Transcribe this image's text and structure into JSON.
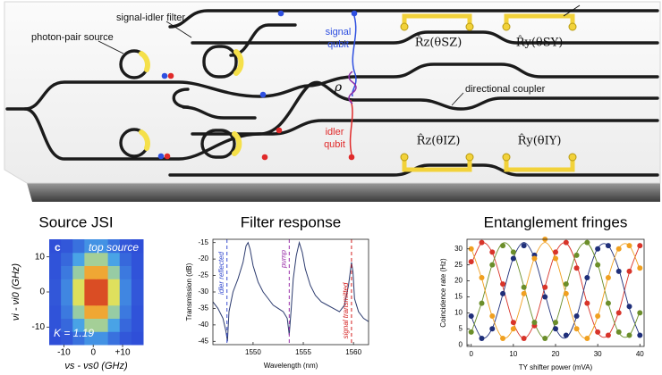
{
  "diagram": {
    "labels": {
      "filter": "signal-idler filter",
      "source": "photon-pair source",
      "signal": [
        "signal",
        "qubit"
      ],
      "rho": "ρ",
      "idler": [
        "idler",
        "qubit"
      ],
      "coupler": "directional coupler",
      "rsz": "R̂z(θSZ)",
      "rsy": "R̂y(θSY)",
      "riz": "R̂z(θIZ)",
      "riy": "R̂y(θIY)"
    }
  },
  "chart_data": [
    {
      "type": "heatmap",
      "title": "Source JSI",
      "xlabel": "νs - νs0 (GHz)",
      "ylabel": "νi - νi0 (GHz)",
      "annotations": [
        "c",
        "top source",
        "K = 1.19"
      ],
      "xlim": [
        -15,
        17
      ],
      "ylim": [
        -15,
        15
      ],
      "xticks": [
        -10,
        0,
        {
          "value": 10,
          "label": "+10"
        }
      ],
      "yticks": [
        -10,
        0,
        10
      ],
      "colormap": [
        "#2f4fd8",
        "#4fb8ea",
        "#f2e54a",
        "#ee8a2a",
        "#c8141e"
      ],
      "z": [
        [
          0.0,
          0.02,
          0.08,
          0.16,
          0.16,
          0.08,
          0.02,
          0.0
        ],
        [
          0.01,
          0.06,
          0.2,
          0.38,
          0.38,
          0.2,
          0.06,
          0.01
        ],
        [
          0.01,
          0.1,
          0.36,
          0.67,
          0.67,
          0.36,
          0.1,
          0.01
        ],
        [
          0.02,
          0.13,
          0.47,
          0.88,
          0.88,
          0.47,
          0.13,
          0.02
        ],
        [
          0.02,
          0.13,
          0.47,
          0.88,
          0.88,
          0.47,
          0.13,
          0.02
        ],
        [
          0.01,
          0.1,
          0.36,
          0.67,
          0.67,
          0.36,
          0.1,
          0.01
        ],
        [
          0.01,
          0.06,
          0.2,
          0.38,
          0.38,
          0.2,
          0.06,
          0.01
        ],
        [
          0.0,
          0.02,
          0.08,
          0.16,
          0.16,
          0.08,
          0.02,
          0.0
        ]
      ]
    },
    {
      "type": "line",
      "title": "Filter response",
      "xlabel": "Wavelength (nm)",
      "ylabel": "Transmission (dB)",
      "xlim": [
        1546,
        1561.5
      ],
      "ylim": [
        -46,
        -14
      ],
      "xticks": [
        1550,
        1555,
        1560
      ],
      "yticks": [
        -15,
        -20,
        -25,
        -30,
        -35,
        -40,
        -45
      ],
      "color": "#2b3a6e",
      "x": [
        1546.0,
        1546.5,
        1547.0,
        1547.3,
        1547.45,
        1547.6,
        1548.0,
        1548.5,
        1549.0,
        1549.3,
        1549.5,
        1549.7,
        1550.0,
        1550.5,
        1551.0,
        1551.5,
        1552.0,
        1552.5,
        1553.0,
        1553.4,
        1553.6,
        1553.8,
        1554.0,
        1554.3,
        1554.6,
        1554.9,
        1555.2,
        1555.7,
        1556.2,
        1556.8,
        1557.4,
        1558.0,
        1558.6,
        1559.1,
        1559.5,
        1559.8,
        1559.95,
        1560.1,
        1560.5,
        1561.0,
        1561.5
      ],
      "values": [
        -33,
        -35,
        -38,
        -42,
        -45,
        -36,
        -30,
        -26,
        -21,
        -16,
        -15,
        -17,
        -22,
        -27,
        -30,
        -32,
        -34,
        -35,
        -36,
        -38,
        -43,
        -35,
        -26,
        -19,
        -15,
        -18,
        -23,
        -28,
        -31,
        -33,
        -34,
        -35,
        -36,
        -34,
        -28,
        -21,
        -24,
        -32,
        -36,
        -38,
        -39
      ],
      "annotations": [
        {
          "text": "idler reflected",
          "x": 1547.4,
          "color": "#3a4fd0"
        },
        {
          "text": "pump",
          "x": 1553.6,
          "color": "#9a2fa8"
        },
        {
          "text": "signal transmitted",
          "x": 1559.8,
          "color": "#d42020"
        }
      ]
    },
    {
      "type": "scatter",
      "title": "Entanglement fringes",
      "xlabel": "TY shifter power (mVA)",
      "ylabel": "Coincidence rate (Hz)",
      "xlim": [
        -1,
        41
      ],
      "ylim": [
        -0.5,
        33
      ],
      "xticks": [
        0,
        10,
        20,
        30,
        40
      ],
      "yticks": [
        0,
        5,
        10,
        15,
        20,
        25,
        30
      ],
      "x": [
        0,
        2.5,
        5,
        7.5,
        10,
        12.5,
        15,
        17.5,
        20,
        22.5,
        25,
        27.5,
        30,
        32.5,
        35,
        37.5,
        40
      ],
      "series": [
        {
          "color": "#d8342a",
          "values": [
            26,
            32,
            29,
            19,
            7,
            2,
            6,
            18,
            29,
            32,
            24,
            13,
            4,
            3,
            10,
            23,
            31
          ],
          "fit_values": [
            25.2,
            31.8,
            28.8,
            18.2,
            6.8,
            2.0,
            6.8,
            18.2,
            28.8,
            31.8,
            25.2,
            12.9,
            3.8,
            3.0,
            10.4,
            22.6,
            31.2
          ]
        },
        {
          "color": "#1f2f7a",
          "values": [
            9,
            2,
            5,
            16,
            27,
            31,
            28,
            15,
            5,
            3,
            9,
            21,
            30,
            31,
            23,
            12,
            3
          ],
          "fit_values": [
            8.8,
            2.2,
            5.2,
            15.8,
            27.2,
            32.0,
            27.2,
            15.8,
            5.2,
            2.2,
            8.8,
            21.1,
            30.2,
            31.0,
            23.6,
            11.4,
            2.8
          ]
        },
        {
          "color": "#6b8e2a",
          "values": [
            4,
            13,
            25,
            31,
            29,
            18,
            7,
            2,
            7,
            19,
            28,
            32,
            25,
            13,
            4,
            3,
            10
          ],
          "fit_values": [
            3.8,
            13.3,
            25.2,
            31.8,
            28.8,
            18.2,
            6.8,
            2.0,
            6.8,
            18.2,
            28.8,
            31.8,
            25.2,
            12.9,
            3.8,
            3.0,
            10.4
          ]
        },
        {
          "color": "#f0a020",
          "values": [
            30,
            21,
            9,
            2,
            5,
            16,
            27,
            33,
            27,
            16,
            5,
            2,
            9,
            21,
            30,
            31,
            24
          ],
          "fit_values": [
            30.2,
            20.7,
            8.8,
            2.2,
            5.2,
            15.8,
            27.2,
            32.0,
            27.2,
            15.8,
            5.2,
            2.2,
            8.8,
            21.1,
            30.2,
            31.0,
            23.6
          ]
        }
      ]
    }
  ]
}
